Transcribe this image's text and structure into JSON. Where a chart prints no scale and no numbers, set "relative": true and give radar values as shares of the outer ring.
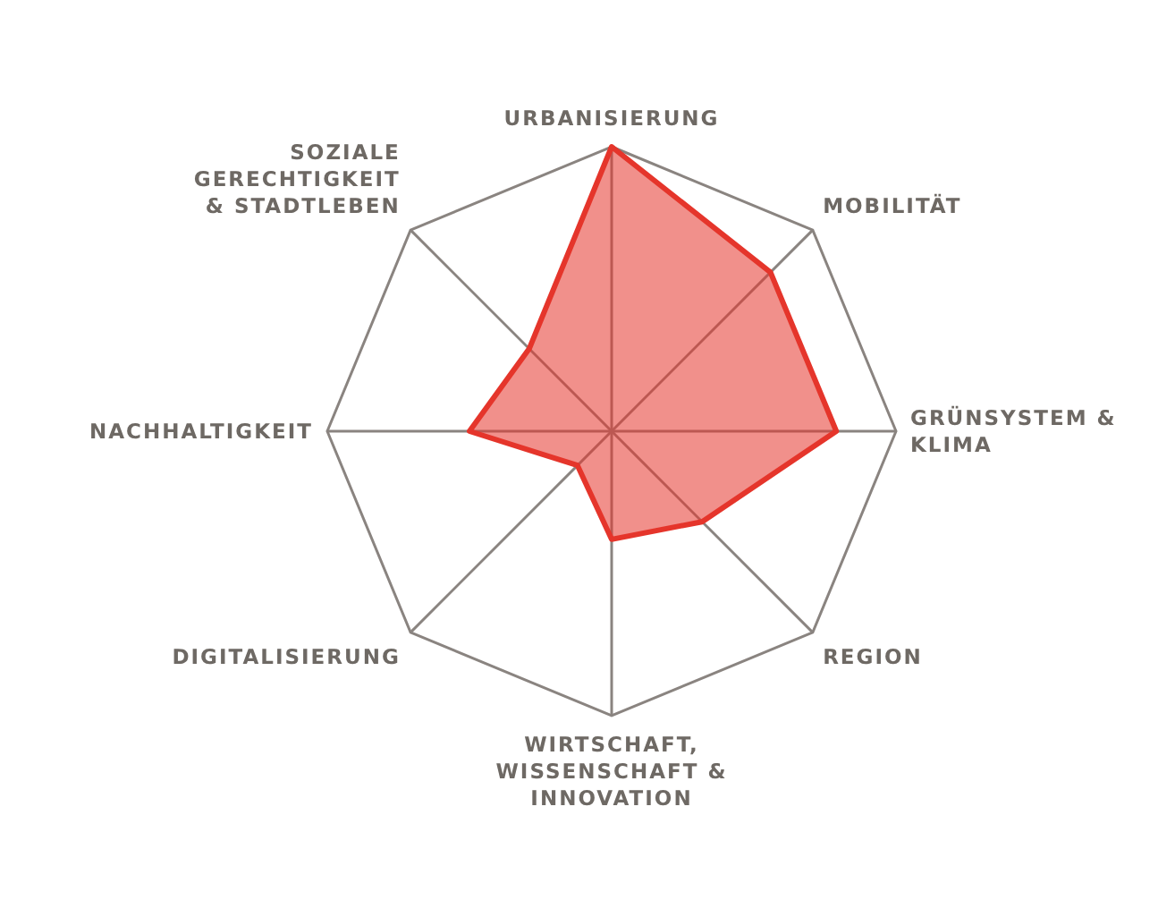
{
  "chart_data": {
    "type": "radar",
    "relative": true,
    "grid": true,
    "categories": [
      "URBANISIERUNG",
      "MOBILITÄT",
      "GRÜNSYSTEM & KLIMA",
      "REGION",
      "WIRTSCHAFT, WISSENSCHAFT & INNOVATION",
      "DIGITALISIERUNG",
      "NACHHALTIGKEIT",
      "SOZIALE GERECHTIGKEIT & STADTLEBEN"
    ],
    "series": [
      {
        "color": "#e5352b",
        "values": [
          1.0,
          0.79,
          0.79,
          0.45,
          0.38,
          0.17,
          0.5,
          0.41
        ]
      }
    ]
  }
}
